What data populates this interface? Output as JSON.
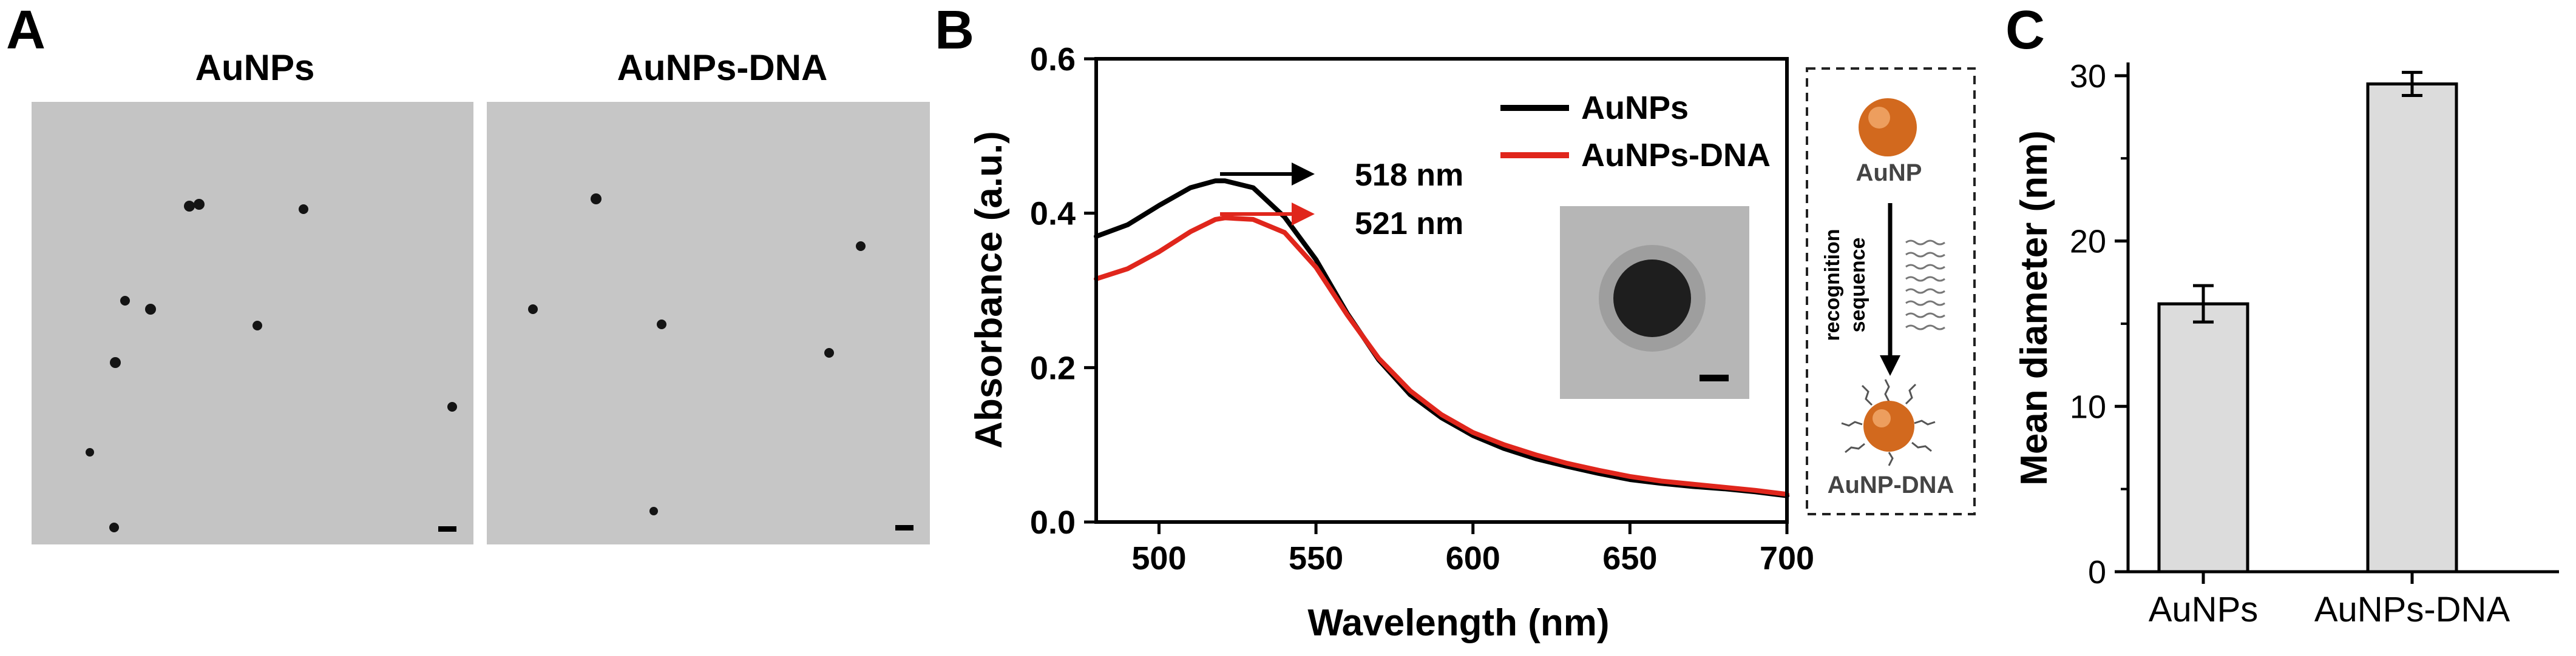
{
  "panel_a": {
    "label": "A",
    "images": [
      {
        "title": "AuNPs"
      },
      {
        "title": "AuNPs-DNA"
      }
    ]
  },
  "panel_b": {
    "label": "B",
    "annotations": {
      "peak1": "518 nm",
      "peak2": "521 nm"
    },
    "schematic": {
      "top_label": "AuNP",
      "arrow_label_line1": "recognition",
      "arrow_label_line2": "sequence",
      "bottom_label": "AuNP-DNA"
    }
  },
  "panel_c": {
    "label": "C"
  },
  "colors": {
    "black_line": "#000000",
    "red_line": "#e0261c",
    "bar_fill": "#dcdcdc",
    "tem_background": "#c4c4c4",
    "gold": "#d2691e"
  },
  "chart_data": [
    {
      "type": "line",
      "xlabel": "Wavelength (nm)",
      "ylabel": "Absorbance (a.u.)",
      "xlim": [
        480,
        700
      ],
      "ylim": [
        0.0,
        0.6
      ],
      "xticks": [
        "500",
        "550",
        "600",
        "650",
        "700"
      ],
      "yticks": [
        "0.0",
        "0.2",
        "0.4",
        "0.6"
      ],
      "legend_position": "top-right",
      "x": [
        480,
        490,
        500,
        510,
        518,
        521,
        530,
        540,
        550,
        560,
        570,
        580,
        590,
        600,
        610,
        620,
        630,
        640,
        650,
        660,
        670,
        680,
        690,
        700
      ],
      "series": [
        {
          "name": "AuNPs",
          "color": "#000000",
          "values": [
            0.37,
            0.385,
            0.41,
            0.433,
            0.442,
            0.442,
            0.433,
            0.395,
            0.34,
            0.27,
            0.21,
            0.165,
            0.135,
            0.112,
            0.095,
            0.082,
            0.072,
            0.063,
            0.055,
            0.05,
            0.046,
            0.043,
            0.039,
            0.034
          ]
        },
        {
          "name": "AuNPs-DNA",
          "color": "#e0261c",
          "values": [
            0.315,
            0.328,
            0.35,
            0.376,
            0.392,
            0.394,
            0.392,
            0.375,
            0.33,
            0.268,
            0.212,
            0.17,
            0.139,
            0.116,
            0.1,
            0.087,
            0.076,
            0.067,
            0.059,
            0.053,
            0.049,
            0.045,
            0.041,
            0.036
          ]
        }
      ]
    },
    {
      "type": "bar",
      "ylabel": "Mean diameter (nm)",
      "ylim": [
        0,
        30.8
      ],
      "yticks": [
        "0",
        "10",
        "20",
        "30"
      ],
      "categories": [
        "AuNPs",
        "AuNPs-DNA"
      ],
      "values": [
        16.2,
        29.5
      ],
      "errors": [
        1.1,
        0.7
      ]
    }
  ]
}
